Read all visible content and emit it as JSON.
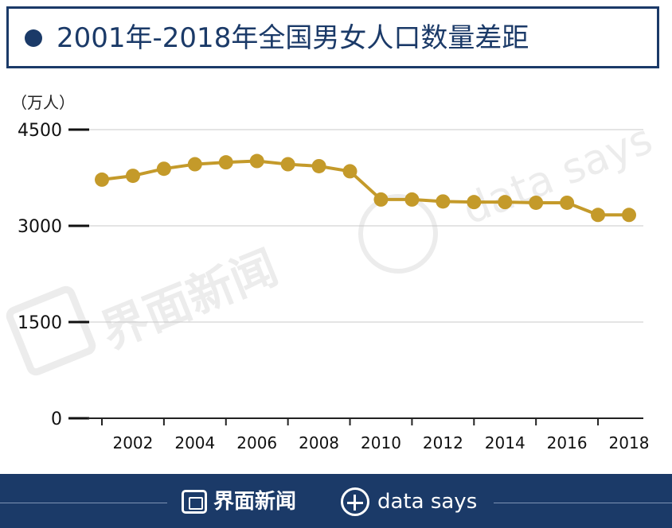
{
  "header": {
    "title": "2001年-2018年全国男女人口数量差距"
  },
  "footer": {
    "brand_cn": "界面新闻",
    "brand_en": "data says"
  },
  "watermarks": {
    "cn": "界面新闻",
    "en": "data says"
  },
  "colors": {
    "navy": "#1b3a68",
    "series": "#c49a2a",
    "grid": "#c8c8c8"
  },
  "chart_data": {
    "type": "line",
    "title": "2001年-2018年全国男女人口数量差距",
    "ylabel": "（万人）",
    "xlabel": "",
    "x": [
      2001,
      2002,
      2003,
      2004,
      2005,
      2006,
      2007,
      2008,
      2009,
      2010,
      2011,
      2012,
      2013,
      2014,
      2015,
      2016,
      2017,
      2018
    ],
    "values": [
      3720,
      3780,
      3890,
      3960,
      3990,
      4010,
      3960,
      3930,
      3850,
      3410,
      3410,
      3380,
      3370,
      3370,
      3360,
      3360,
      3170,
      3170
    ],
    "ylim": [
      0,
      4500
    ],
    "yticks": [
      0,
      1500,
      3000,
      4500
    ],
    "xticks": [
      2002,
      2004,
      2006,
      2008,
      2010,
      2012,
      2014,
      2016,
      2018
    ],
    "grid": true,
    "legend": "none"
  }
}
